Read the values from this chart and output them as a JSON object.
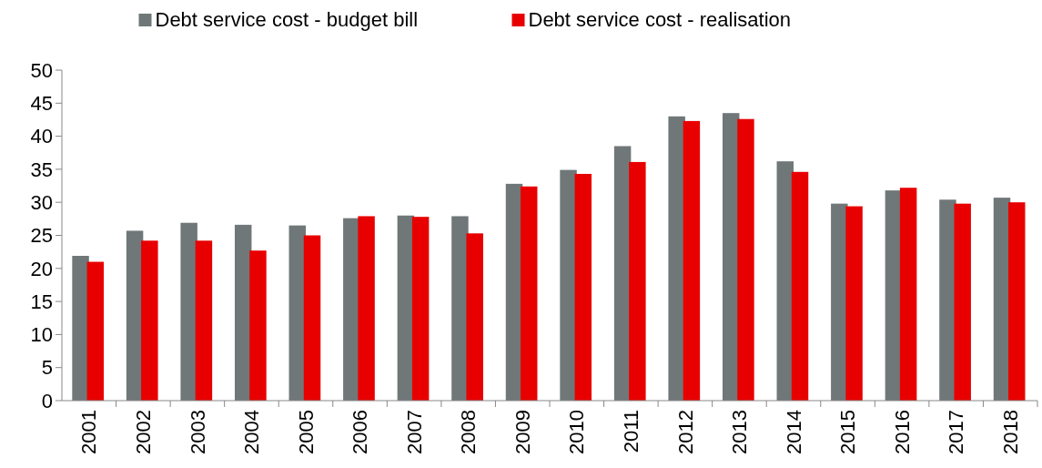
{
  "chart_data": {
    "type": "bar",
    "categories": [
      "2001",
      "2002",
      "2003",
      "2004",
      "2005",
      "2006",
      "2007",
      "2008",
      "2009",
      "2010",
      "2011",
      "2012",
      "2013",
      "2014",
      "2015",
      "2016",
      "2017",
      "2018"
    ],
    "series": [
      {
        "name": "Debt service cost - budget bill",
        "color": "#707778",
        "values": [
          21.9,
          25.7,
          26.9,
          26.6,
          26.5,
          27.6,
          28.0,
          27.9,
          32.8,
          34.9,
          38.5,
          43.0,
          43.5,
          36.2,
          29.8,
          31.8,
          30.4,
          30.7
        ]
      },
      {
        "name": "Debt service cost - realisation",
        "color": "#e80000",
        "values": [
          21.0,
          24.2,
          24.2,
          22.7,
          25.0,
          27.9,
          27.8,
          25.3,
          32.4,
          34.3,
          36.1,
          42.3,
          42.6,
          34.6,
          29.4,
          32.2,
          29.8,
          30.0
        ]
      }
    ],
    "ylim": [
      0,
      50
    ],
    "yticks": [
      0,
      5,
      10,
      15,
      20,
      25,
      30,
      35,
      40,
      45,
      50
    ],
    "grid": false,
    "legend": "top"
  }
}
